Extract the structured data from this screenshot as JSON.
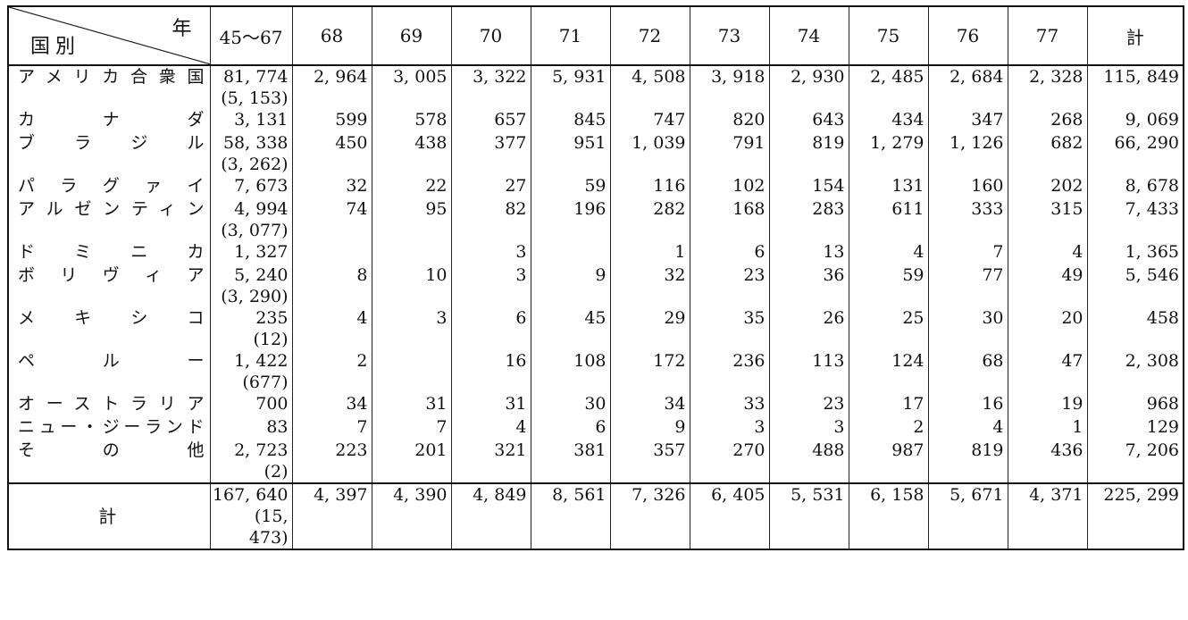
{
  "header": {
    "corner_year": "年",
    "corner_country": "国別",
    "columns": [
      "45〜67",
      "68",
      "69",
      "70",
      "71",
      "72",
      "73",
      "74",
      "75",
      "76",
      "77",
      "計"
    ]
  },
  "rows": [
    {
      "country": "アメリカ合衆国",
      "first": "81, 774",
      "first_sub": "(5, 153)",
      "values": [
        "2, 964",
        "3, 005",
        "3, 322",
        "5, 931",
        "4, 508",
        "3, 918",
        "2, 930",
        "2, 485",
        "2, 684",
        "2, 328"
      ],
      "total": "115, 849"
    },
    {
      "country": "カ　　ナ　　ダ",
      "first": "3, 131",
      "first_sub": "",
      "values": [
        "599",
        "578",
        "657",
        "845",
        "747",
        "820",
        "643",
        "434",
        "347",
        "268"
      ],
      "total": "9, 069"
    },
    {
      "country": "ブ　ラ　ジ　ル",
      "first": "58, 338",
      "first_sub": "(3, 262)",
      "values": [
        "450",
        "438",
        "377",
        "951",
        "1, 039",
        "791",
        "819",
        "1, 279",
        "1, 126",
        "682"
      ],
      "total": "66, 290"
    },
    {
      "country": "パ　ラ　グ　ァ　イ",
      "first": "7, 673",
      "first_sub": "",
      "values": [
        "32",
        "22",
        "27",
        "59",
        "116",
        "102",
        "154",
        "131",
        "160",
        "202"
      ],
      "total": "8, 678"
    },
    {
      "country": "アルゼンティン",
      "first": "4, 994",
      "first_sub": "(3, 077)",
      "values": [
        "74",
        "95",
        "82",
        "196",
        "282",
        "168",
        "283",
        "611",
        "333",
        "315"
      ],
      "total": "7, 433"
    },
    {
      "country": "ド　ミ　ニ　カ",
      "first": "1, 327",
      "first_sub": "",
      "values": [
        "",
        "",
        "3",
        "",
        "1",
        "6",
        "13",
        "4",
        "7",
        "4"
      ],
      "total": "1, 365"
    },
    {
      "country": "ボ　リ　ヴ　ィ　ア",
      "first": "5, 240",
      "first_sub": "(3, 290)",
      "values": [
        "8",
        "10",
        "3",
        "9",
        "32",
        "23",
        "36",
        "59",
        "77",
        "49"
      ],
      "total": "5, 546"
    },
    {
      "country": "メ　キ　シ　コ",
      "first": "235",
      "first_sub": "(12)",
      "values": [
        "4",
        "3",
        "6",
        "45",
        "29",
        "35",
        "26",
        "25",
        "30",
        "20"
      ],
      "total": "458"
    },
    {
      "country": "ペ　　ル　　ー",
      "first": "1, 422",
      "first_sub": "(677)",
      "values": [
        "2",
        "",
        "16",
        "108",
        "172",
        "236",
        "113",
        "124",
        "68",
        "47"
      ],
      "total": "2, 308"
    },
    {
      "country": "オーストラリア",
      "first": "700",
      "first_sub": "",
      "values": [
        "34",
        "31",
        "31",
        "30",
        "34",
        "33",
        "23",
        "17",
        "16",
        "19"
      ],
      "total": "968"
    },
    {
      "country": "ニュー・ジーランド",
      "first": "83",
      "first_sub": "",
      "values": [
        "7",
        "7",
        "4",
        "6",
        "9",
        "3",
        "3",
        "2",
        "4",
        "1"
      ],
      "total": "129"
    },
    {
      "country": "そ　　の　　他",
      "first": "2, 723",
      "first_sub": "(2)",
      "values": [
        "223",
        "201",
        "321",
        "381",
        "357",
        "270",
        "488",
        "987",
        "819",
        "436"
      ],
      "total": "7, 206"
    }
  ],
  "total_row": {
    "label": "計",
    "first": "167, 640",
    "first_sub": "(15, 473)",
    "values": [
      "4, 397",
      "4, 390",
      "4, 849",
      "8, 561",
      "7, 326",
      "6, 405",
      "5, 531",
      "6, 158",
      "5, 671",
      "4, 371"
    ],
    "total": "225, 299"
  }
}
